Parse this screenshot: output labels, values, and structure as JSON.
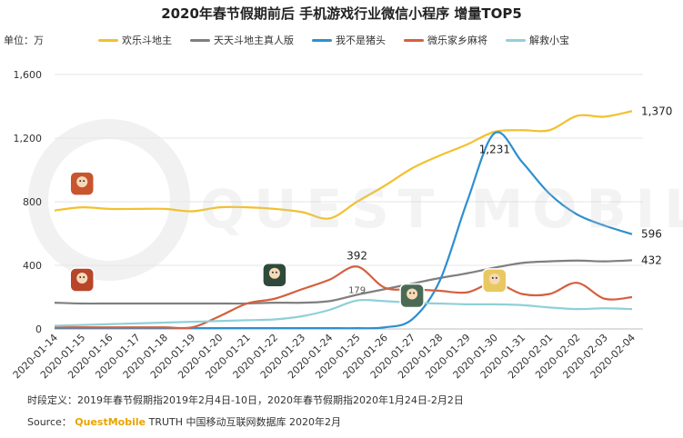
{
  "page": {
    "title": "2020年春节假期前后 手机游戏行业微信小程序 增量TOP5",
    "unit_label": "单位：万",
    "footnote": "时段定义：2019年春节假期指2019年2月4日-10日，2020年春节假期指2020年1月24日-2月2日",
    "source_prefix": "Source：",
    "source_brand": "QuestMobile",
    "source_rest": "TRUTH 中国移动互联网数据库 2020年2月",
    "watermark": "QUEST MOBILE"
  },
  "chart_data": {
    "type": "line",
    "x": [
      "2020-01-14",
      "2020-01-15",
      "2020-01-16",
      "2020-01-17",
      "2020-01-18",
      "2020-01-19",
      "2020-01-20",
      "2020-01-21",
      "2020-01-22",
      "2020-01-23",
      "2020-01-24",
      "2020-01-25",
      "2020-01-26",
      "2020-01-27",
      "2020-01-28",
      "2020-01-29",
      "2020-01-30",
      "2020-01-31",
      "2020-02-01",
      "2020-02-02",
      "2020-02-03",
      "2020-02-04"
    ],
    "ylim": [
      0,
      1600
    ],
    "yticks": [
      "0",
      "400",
      "800",
      "1,200",
      "1,600"
    ],
    "ytick_values": [
      0,
      400,
      800,
      1200,
      1600
    ],
    "grid": true,
    "legend_position": "top",
    "series": [
      {
        "name": "欢乐斗地主",
        "color": "#F2C12E",
        "values": [
          745,
          765,
          755,
          755,
          755,
          740,
          765,
          765,
          755,
          735,
          695,
          800,
          900,
          1010,
          1090,
          1160,
          1240,
          1250,
          1250,
          1340,
          1335,
          1370
        ]
      },
      {
        "name": "天天斗地主真人版",
        "color": "#7F7F7F",
        "values": [
          165,
          160,
          160,
          160,
          160,
          160,
          160,
          160,
          165,
          165,
          175,
          215,
          250,
          285,
          320,
          350,
          385,
          415,
          425,
          430,
          425,
          432
        ]
      },
      {
        "name": "我不是猪头",
        "color": "#2E8FD0",
        "values": [
          5,
          5,
          5,
          5,
          5,
          5,
          5,
          5,
          5,
          5,
          5,
          5,
          10,
          60,
          300,
          800,
          1231,
          1050,
          850,
          720,
          650,
          596
        ]
      },
      {
        "name": "微乐家乡麻将",
        "color": "#D4603F",
        "values": [
          10,
          10,
          10,
          10,
          10,
          10,
          80,
          160,
          190,
          250,
          310,
          392,
          260,
          250,
          240,
          230,
          290,
          220,
          220,
          290,
          190,
          200
        ]
      },
      {
        "name": "解救小宝",
        "color": "#8FD0D8",
        "values": [
          20,
          25,
          30,
          35,
          40,
          45,
          50,
          55,
          60,
          80,
          120,
          179,
          175,
          165,
          160,
          155,
          155,
          150,
          135,
          125,
          130,
          125
        ]
      }
    ],
    "annotations": [
      {
        "series": 0,
        "index": 21,
        "label": "1,370"
      },
      {
        "series": 2,
        "index": 16,
        "label": "1,231"
      },
      {
        "series": 2,
        "index": 21,
        "label": "596"
      },
      {
        "series": 3,
        "index": 11,
        "label": "392"
      },
      {
        "series": 1,
        "index": 21,
        "label": "432"
      },
      {
        "series": 4,
        "index": 11,
        "label": "179"
      }
    ],
    "game_icons": [
      {
        "name": "huanle-doudizhu-icon",
        "color": "#C8552E",
        "series": 0,
        "index": 1
      },
      {
        "name": "tiantian-doudizhu-icon",
        "color": "#B8452A",
        "series": 1,
        "index": 1
      },
      {
        "name": "wobushi-zhutou-icon",
        "color": "#4A6A55",
        "series": 2,
        "index": 13
      },
      {
        "name": "weile-majiang-icon",
        "color": "#2F4A3A",
        "series": 3,
        "index": 8
      },
      {
        "name": "jiejiu-xiaobao-icon",
        "color": "#E8C860",
        "series": 4,
        "index": 16
      }
    ]
  }
}
